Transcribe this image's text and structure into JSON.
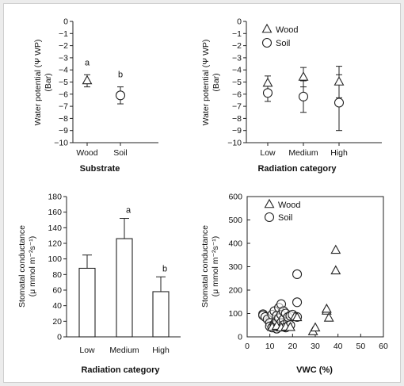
{
  "chart_data": [
    {
      "type": "scatter",
      "panel": "top-left",
      "categories": [
        "Wood",
        "Soil"
      ],
      "series": [
        {
          "values": [
            -4.9,
            -6.1
          ],
          "error": [
            0.5,
            0.7
          ],
          "markers": [
            "triangle",
            "circle"
          ]
        }
      ],
      "annotations": [
        "a",
        "b"
      ],
      "ylabel": [
        "Water potential (Ψ WP)",
        "(Bar)"
      ],
      "xlabel": "Substrate",
      "ylim": [
        -10,
        0
      ],
      "yticks": [
        0,
        -1,
        -2,
        -3,
        -4,
        -5,
        -6,
        -7,
        -8,
        -9,
        -10
      ]
    },
    {
      "type": "scatter",
      "panel": "top-right",
      "categories": [
        "Low",
        "Medium",
        "High"
      ],
      "series": [
        {
          "name": "Wood",
          "marker": "triangle",
          "values": [
            -5.1,
            -4.6,
            -5.0
          ],
          "error_lo": [
            0.6,
            0.8,
            1.3
          ],
          "error_hi": [
            0.6,
            0.8,
            1.3
          ]
        },
        {
          "name": "Soil",
          "marker": "circle",
          "values": [
            -5.9,
            -6.2,
            -6.7
          ],
          "error_lo": [
            0.7,
            1.3,
            2.3
          ],
          "error_hi": [
            0.7,
            1.3,
            2.3
          ]
        }
      ],
      "ylabel": [
        "Water potential (Ψ WP)",
        "(Bar)"
      ],
      "xlabel": "Radiation category",
      "ylim": [
        -10,
        0
      ],
      "yticks": [
        0,
        -1,
        -2,
        -3,
        -4,
        -5,
        -6,
        -7,
        -8,
        -9,
        -10
      ],
      "legend": "top-right"
    },
    {
      "type": "bar",
      "panel": "bottom-left",
      "categories": [
        "Low",
        "Medium",
        "High"
      ],
      "values": [
        88,
        126,
        58
      ],
      "error_hi": [
        17,
        26,
        19
      ],
      "annotations": [
        "",
        "a",
        "b"
      ],
      "ylabel": [
        "Stomatal conductance",
        "(μ mmol m⁻²s⁻¹)"
      ],
      "xlabel": "Radiation category",
      "ylim": [
        0,
        180
      ],
      "yticks": [
        0,
        20,
        40,
        60,
        80,
        100,
        120,
        140,
        160,
        180
      ]
    },
    {
      "type": "scatter",
      "panel": "bottom-right",
      "series": [
        {
          "name": "Wood",
          "marker": "triangle",
          "points": [
            [
              11,
              40
            ],
            [
              13,
              45
            ],
            [
              15,
              38
            ],
            [
              17,
              42
            ],
            [
              19,
              40
            ],
            [
              21,
              85
            ],
            [
              22,
              82
            ],
            [
              29,
              22
            ],
            [
              30,
              38
            ],
            [
              35,
              110
            ],
            [
              35,
              118
            ],
            [
              36,
              80
            ],
            [
              39,
              370
            ],
            [
              39,
              282
            ]
          ]
        },
        {
          "name": "Soil",
          "marker": "circle",
          "points": [
            [
              7,
              97
            ],
            [
              7,
              92
            ],
            [
              8,
              85
            ],
            [
              9,
              75
            ],
            [
              10,
              60
            ],
            [
              10,
              45
            ],
            [
              11,
              40
            ],
            [
              11,
              95
            ],
            [
              12,
              55
            ],
            [
              12,
              110
            ],
            [
              12,
              50
            ],
            [
              13,
              35
            ],
            [
              13,
              70
            ],
            [
              13,
              90
            ],
            [
              14,
              125
            ],
            [
              14,
              80
            ],
            [
              14,
              45
            ],
            [
              15,
              60
            ],
            [
              15,
              140
            ],
            [
              15,
              95
            ],
            [
              16,
              75
            ],
            [
              16,
              110
            ],
            [
              16,
              50
            ],
            [
              17,
              40
            ],
            [
              17,
              100
            ],
            [
              18,
              65
            ],
            [
              18,
              85
            ],
            [
              19,
              90
            ],
            [
              19,
              50
            ],
            [
              20,
              95
            ],
            [
              22,
              268
            ],
            [
              22,
              148
            ],
            [
              22,
              85
            ]
          ]
        }
      ],
      "ylabel": [
        "Stomatal conductance",
        "(μ mmol m⁻²s⁻¹)"
      ],
      "xlabel": "VWC (%)",
      "xlim": [
        0,
        60
      ],
      "ylim": [
        0,
        600
      ],
      "xticks": [
        0,
        10,
        20,
        30,
        40,
        50,
        60
      ],
      "yticks": [
        0,
        100,
        200,
        300,
        400,
        500,
        600
      ],
      "legend": "top-left"
    }
  ]
}
